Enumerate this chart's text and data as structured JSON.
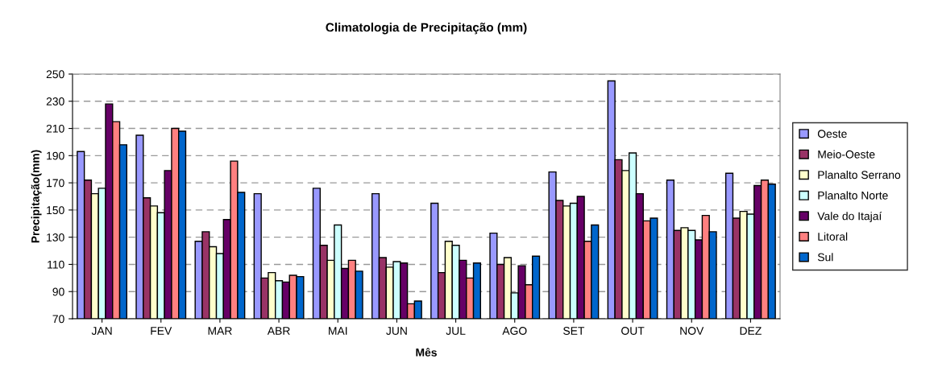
{
  "chart_data": {
    "type": "bar",
    "title": "Climatologia de Precipitação (mm)",
    "xlabel": "Mês",
    "ylabel": "Precipitação(mm)",
    "categories": [
      "JAN",
      "FEV",
      "MAR",
      "ABR",
      "MAI",
      "JUN",
      "JUL",
      "AGO",
      "SET",
      "OUT",
      "NOV",
      "DEZ"
    ],
    "series": [
      {
        "name": "Oeste",
        "color": "#9999ff",
        "values": [
          193,
          205,
          127,
          162,
          166,
          162,
          155,
          133,
          178,
          245,
          172,
          177
        ]
      },
      {
        "name": "Meio-Oeste",
        "color": "#993366",
        "values": [
          172,
          159,
          134,
          100,
          124,
          115,
          104,
          110,
          157,
          187,
          135,
          144
        ]
      },
      {
        "name": "Planalto Serrano",
        "color": "#ffffcc",
        "values": [
          162,
          153,
          123,
          104,
          113,
          108,
          127,
          115,
          153,
          179,
          137,
          149
        ]
      },
      {
        "name": "Planalto Norte",
        "color": "#ccffff",
        "values": [
          166,
          148,
          118,
          98,
          139,
          112,
          124,
          89,
          155,
          192,
          135,
          147
        ]
      },
      {
        "name": "Vale do Itajaí",
        "color": "#660066",
        "values": [
          228,
          179,
          143,
          97,
          107,
          111,
          113,
          109,
          160,
          162,
          128,
          168
        ]
      },
      {
        "name": "Litoral",
        "color": "#ff8080",
        "values": [
          215,
          210,
          186,
          102,
          113,
          81,
          100,
          95,
          127,
          142,
          146,
          172
        ]
      },
      {
        "name": "Sul",
        "color": "#0066cc",
        "values": [
          198,
          208,
          163,
          101,
          105,
          83,
          111,
          116,
          139,
          144,
          134,
          169
        ]
      }
    ],
    "ylim": [
      70,
      250
    ],
    "yticks": [
      70,
      90,
      110,
      130,
      150,
      170,
      190,
      210,
      230,
      250
    ],
    "grid": "y",
    "legend": "right"
  }
}
